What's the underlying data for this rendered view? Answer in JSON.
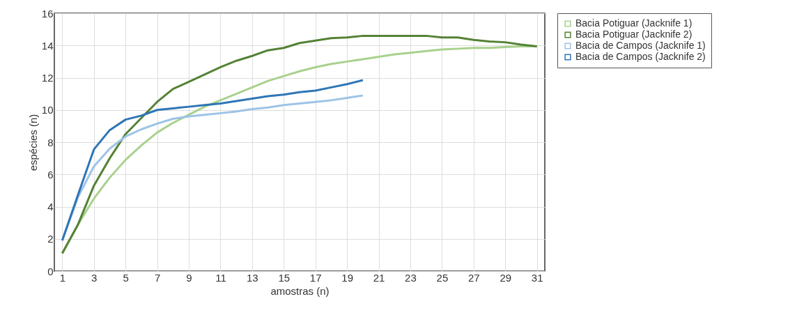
{
  "chart_data": {
    "type": "line",
    "xlabel": "amostras (n)",
    "ylabel": "espécies (n)",
    "x": [
      1,
      2,
      3,
      4,
      5,
      6,
      7,
      8,
      9,
      10,
      11,
      12,
      13,
      14,
      15,
      16,
      17,
      18,
      19,
      20,
      21,
      22,
      23,
      24,
      25,
      26,
      27,
      28,
      29,
      30,
      31
    ],
    "xlim": [
      0.5,
      31.5
    ],
    "xticks": [
      1,
      3,
      5,
      7,
      9,
      11,
      13,
      15,
      17,
      19,
      21,
      23,
      25,
      27,
      29,
      31
    ],
    "ylim": [
      0,
      16
    ],
    "yticks": [
      0,
      2,
      4,
      6,
      8,
      10,
      12,
      14,
      16
    ],
    "grid": true,
    "legend": "right",
    "marker": "none",
    "line_style": "solid",
    "series": [
      {
        "name": "Bacia Potiguar (Jacknife 1)",
        "color": "#a9d18e",
        "values": [
          1.1,
          2.9,
          4.5,
          5.8,
          6.9,
          7.8,
          8.6,
          9.2,
          9.7,
          10.2,
          10.6,
          11.0,
          11.4,
          11.8,
          12.1,
          12.4,
          12.65,
          12.85,
          13.0,
          13.15,
          13.3,
          13.45,
          13.55,
          13.65,
          13.75,
          13.8,
          13.85,
          13.85,
          13.9,
          13.95,
          13.95
        ]
      },
      {
        "name": "Bacia Potiguar (Jacknife 2)",
        "color": "#548235",
        "values": [
          1.1,
          2.9,
          5.3,
          7.0,
          8.5,
          9.5,
          10.5,
          11.3,
          11.75,
          12.2,
          12.65,
          13.05,
          13.35,
          13.7,
          13.85,
          14.15,
          14.3,
          14.45,
          14.5,
          14.6,
          14.6,
          14.6,
          14.6,
          14.6,
          14.5,
          14.5,
          14.35,
          14.25,
          14.2,
          14.05,
          13.95
        ]
      },
      {
        "name": "Bacia de Campos (Jacknife 1)",
        "color": "#9dc3e6",
        "values": [
          1.9,
          4.6,
          6.5,
          7.6,
          8.35,
          8.8,
          9.15,
          9.45,
          9.6,
          9.7,
          9.8,
          9.9,
          10.05,
          10.15,
          10.3,
          10.4,
          10.5,
          10.6,
          10.75,
          10.9,
          null,
          null,
          null,
          null,
          null,
          null,
          null,
          null,
          null,
          null,
          null
        ]
      },
      {
        "name": "Bacia de Campos (Jacknife 2)",
        "color": "#2e75b6",
        "values": [
          1.9,
          4.75,
          7.55,
          8.75,
          9.4,
          9.65,
          10.0,
          10.1,
          10.2,
          10.3,
          10.4,
          10.55,
          10.7,
          10.85,
          10.95,
          11.1,
          11.2,
          11.4,
          11.6,
          11.85,
          null,
          null,
          null,
          null,
          null,
          null,
          null,
          null,
          null,
          null,
          null
        ]
      }
    ]
  }
}
